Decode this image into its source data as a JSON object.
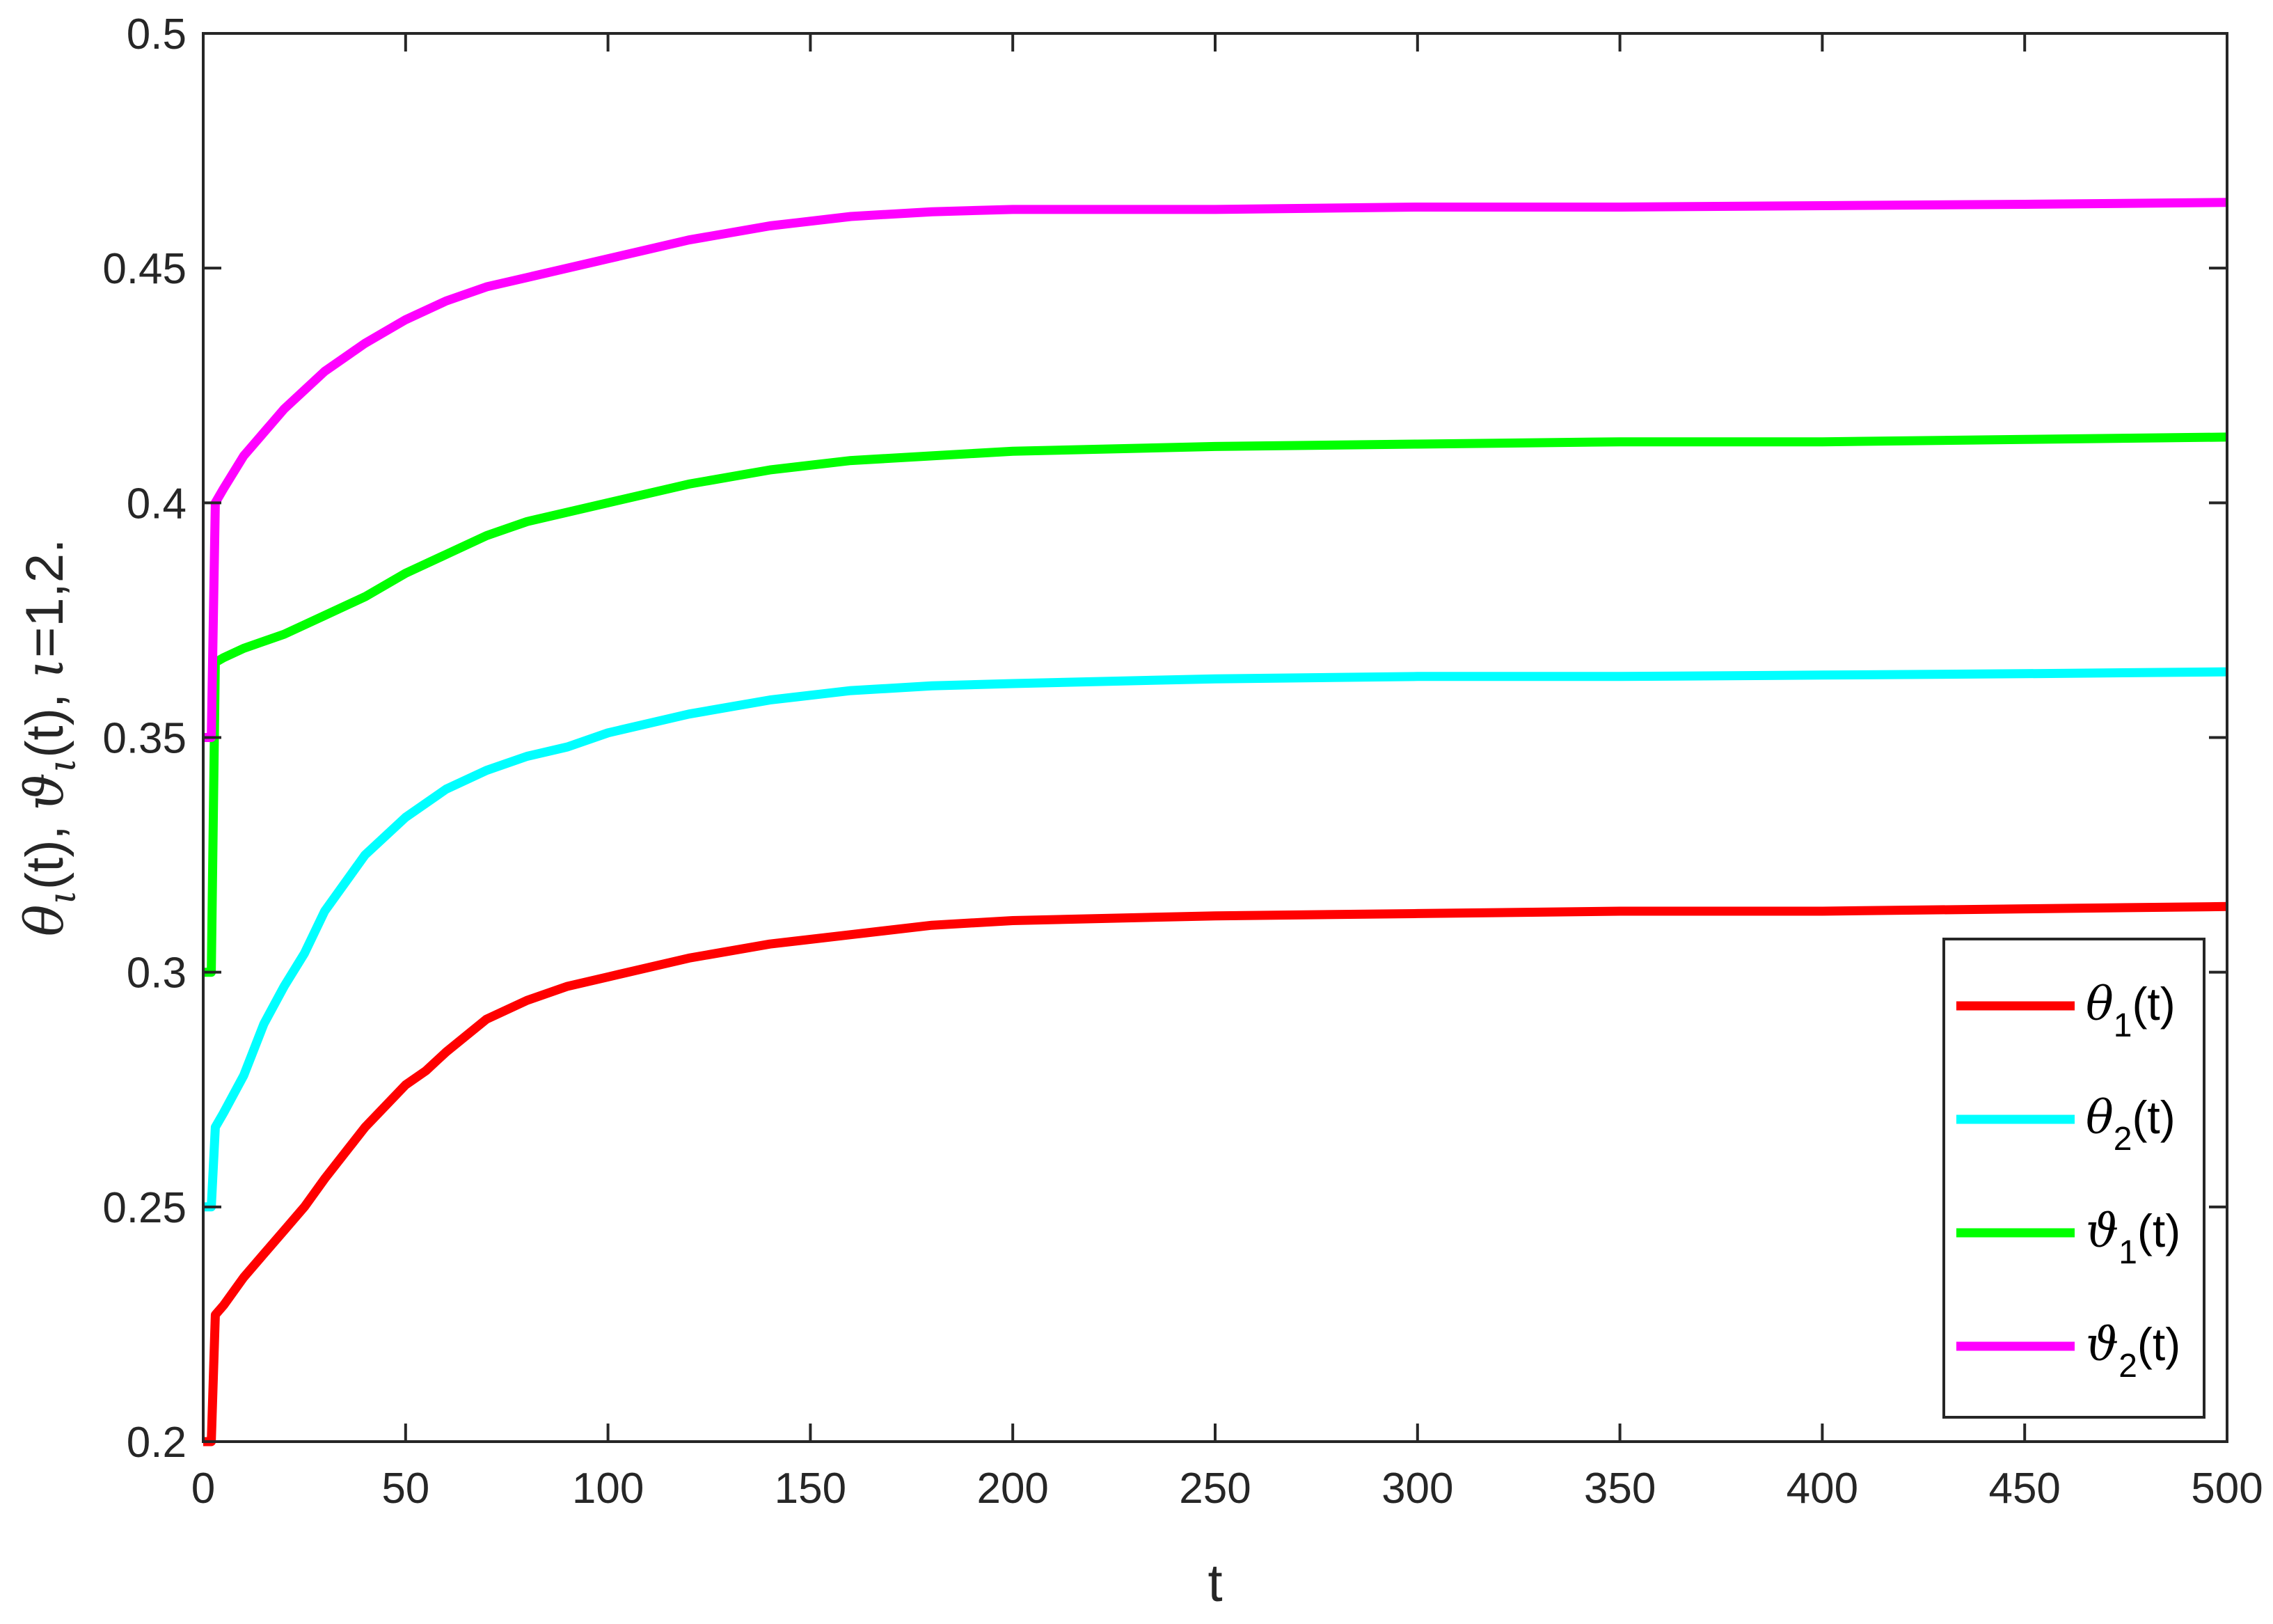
{
  "chart_data": {
    "type": "line",
    "xlabel": "t",
    "ylabel": {
      "parts": [
        {
          "text": "θ",
          "greek": true
        },
        {
          "text": "ι",
          "greek": true,
          "sub": true
        },
        {
          "text": "(t), "
        },
        {
          "text": "ϑ",
          "greek": true
        },
        {
          "text": "ι",
          "greek": true,
          "sub": true
        },
        {
          "text": "(t), "
        },
        {
          "text": "ι",
          "greek": true
        },
        {
          "text": "=1,2."
        }
      ]
    },
    "xlim": [
      0,
      500
    ],
    "ylim": [
      0.2,
      0.5
    ],
    "xticks": [
      0,
      50,
      100,
      150,
      200,
      250,
      300,
      350,
      400,
      450,
      500
    ],
    "yticks": [
      0.2,
      0.25,
      0.3,
      0.35,
      0.4,
      0.45,
      0.5
    ],
    "xtick_labels": [
      "0",
      "50",
      "100",
      "150",
      "200",
      "250",
      "300",
      "350",
      "400",
      "450",
      "500"
    ],
    "ytick_labels": [
      "0.2",
      "0.25",
      "0.3",
      "0.35",
      "0.4",
      "0.45",
      "0.5"
    ],
    "grid": false,
    "legend_position": "bottom-right",
    "series": [
      {
        "key": "theta1",
        "legend": {
          "symbol": "θ",
          "sub": "1",
          "suffix": "(t)"
        },
        "color": "#ff0000",
        "x": [
          0,
          2,
          3,
          5,
          10,
          15,
          20,
          25,
          30,
          40,
          50,
          55,
          60,
          70,
          80,
          90,
          100,
          120,
          140,
          160,
          180,
          200,
          250,
          300,
          350,
          400,
          450,
          500
        ],
        "y": [
          0.2,
          0.2,
          0.227,
          0.229,
          0.235,
          0.24,
          0.245,
          0.25,
          0.256,
          0.267,
          0.276,
          0.279,
          0.283,
          0.29,
          0.294,
          0.297,
          0.299,
          0.303,
          0.306,
          0.308,
          0.31,
          0.311,
          0.312,
          0.3125,
          0.313,
          0.313,
          0.3135,
          0.314
        ]
      },
      {
        "key": "theta2",
        "legend": {
          "symbol": "θ",
          "sub": "2",
          "suffix": "(t)"
        },
        "color": "#00ffff",
        "x": [
          0,
          2,
          3,
          5,
          10,
          15,
          20,
          25,
          30,
          40,
          50,
          60,
          70,
          80,
          90,
          100,
          120,
          140,
          160,
          180,
          200,
          250,
          300,
          350,
          400,
          450,
          500
        ],
        "y": [
          0.25,
          0.25,
          0.267,
          0.27,
          0.278,
          0.289,
          0.297,
          0.304,
          0.313,
          0.325,
          0.333,
          0.339,
          0.343,
          0.346,
          0.348,
          0.351,
          0.355,
          0.358,
          0.36,
          0.361,
          0.3615,
          0.3625,
          0.363,
          0.363,
          0.3633,
          0.3636,
          0.364
        ]
      },
      {
        "key": "vartheta1",
        "legend": {
          "symbol": "ϑ",
          "sub": "1",
          "suffix": "(t)"
        },
        "color": "#00ff00",
        "x": [
          0,
          2,
          3,
          5,
          10,
          20,
          30,
          40,
          50,
          60,
          70,
          80,
          90,
          100,
          120,
          140,
          160,
          180,
          200,
          250,
          300,
          350,
          400,
          450,
          500
        ],
        "y": [
          0.3,
          0.3,
          0.366,
          0.367,
          0.369,
          0.372,
          0.376,
          0.38,
          0.385,
          0.389,
          0.393,
          0.396,
          0.398,
          0.4,
          0.404,
          0.407,
          0.409,
          0.41,
          0.411,
          0.412,
          0.4125,
          0.413,
          0.413,
          0.4135,
          0.414
        ]
      },
      {
        "key": "vartheta2",
        "legend": {
          "symbol": "ϑ",
          "sub": "2",
          "suffix": "(t)"
        },
        "color": "#ff00ff",
        "x": [
          0,
          2,
          3,
          5,
          10,
          20,
          30,
          40,
          50,
          60,
          70,
          80,
          90,
          100,
          120,
          140,
          160,
          180,
          200,
          250,
          300,
          350,
          400,
          450,
          500
        ],
        "y": [
          0.35,
          0.35,
          0.4,
          0.403,
          0.41,
          0.42,
          0.428,
          0.434,
          0.439,
          0.443,
          0.446,
          0.448,
          0.45,
          0.452,
          0.456,
          0.459,
          0.461,
          0.462,
          0.4625,
          0.4625,
          0.463,
          0.463,
          0.4633,
          0.4636,
          0.464
        ]
      }
    ]
  }
}
